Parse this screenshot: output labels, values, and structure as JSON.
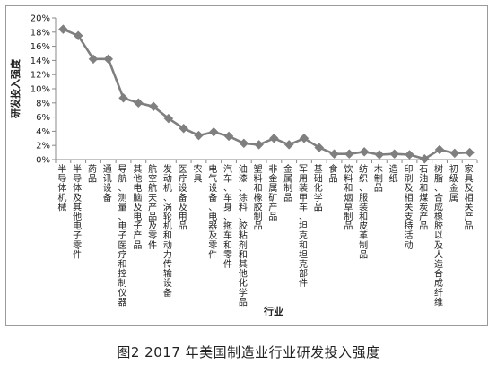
{
  "caption": "图2 2017 年美国制造业行业研发投入强度",
  "chart_data": {
    "type": "line",
    "ylabel": "研发投入强度",
    "xlabel": "行业",
    "ylim": [
      0,
      20
    ],
    "yticks": [
      "0%",
      "2%",
      "4%",
      "6%",
      "8%",
      "10%",
      "12%",
      "14%",
      "16%",
      "18%",
      "20%"
    ],
    "grid": false,
    "marker": "diamond",
    "line_color": "#7f7f7f",
    "categories": [
      "半导体机械",
      "半导体及其他电子零件",
      "药品",
      "通讯设备",
      "导航、测量、电子医疗和控制仪器",
      "其他电脑及电子产品",
      "航空航天产品及零件",
      "发动机、涡轮机和动力传输设备",
      "医疗设备及用品",
      "农具",
      "电气设备、电器及零件",
      "汽车、车身、拖车和零件",
      "油漆、涂料、胶粘剂和其他化学品",
      "塑料和橡胶制品",
      "非金属矿产品",
      "金属制品",
      "军用装甲车、坦克和坦克部件",
      "基础化学品",
      "食品",
      "饮料和烟草制品",
      "纺织、服装和皮革制品",
      "木制品",
      "造纸",
      "印刷及相关支持活动",
      "石油和煤炭产品",
      "树脂、合成橡胶以及人造合成纤维",
      "初级金属",
      "家具及相关产品"
    ],
    "values": [
      18.4,
      17.5,
      14.2,
      14.2,
      8.7,
      8.0,
      7.5,
      5.8,
      4.4,
      3.4,
      3.9,
      3.3,
      2.3,
      2.1,
      3.0,
      2.1,
      3.0,
      1.7,
      0.8,
      0.8,
      1.1,
      0.7,
      0.8,
      0.7,
      0.1,
      1.4,
      0.9,
      1.0
    ]
  }
}
